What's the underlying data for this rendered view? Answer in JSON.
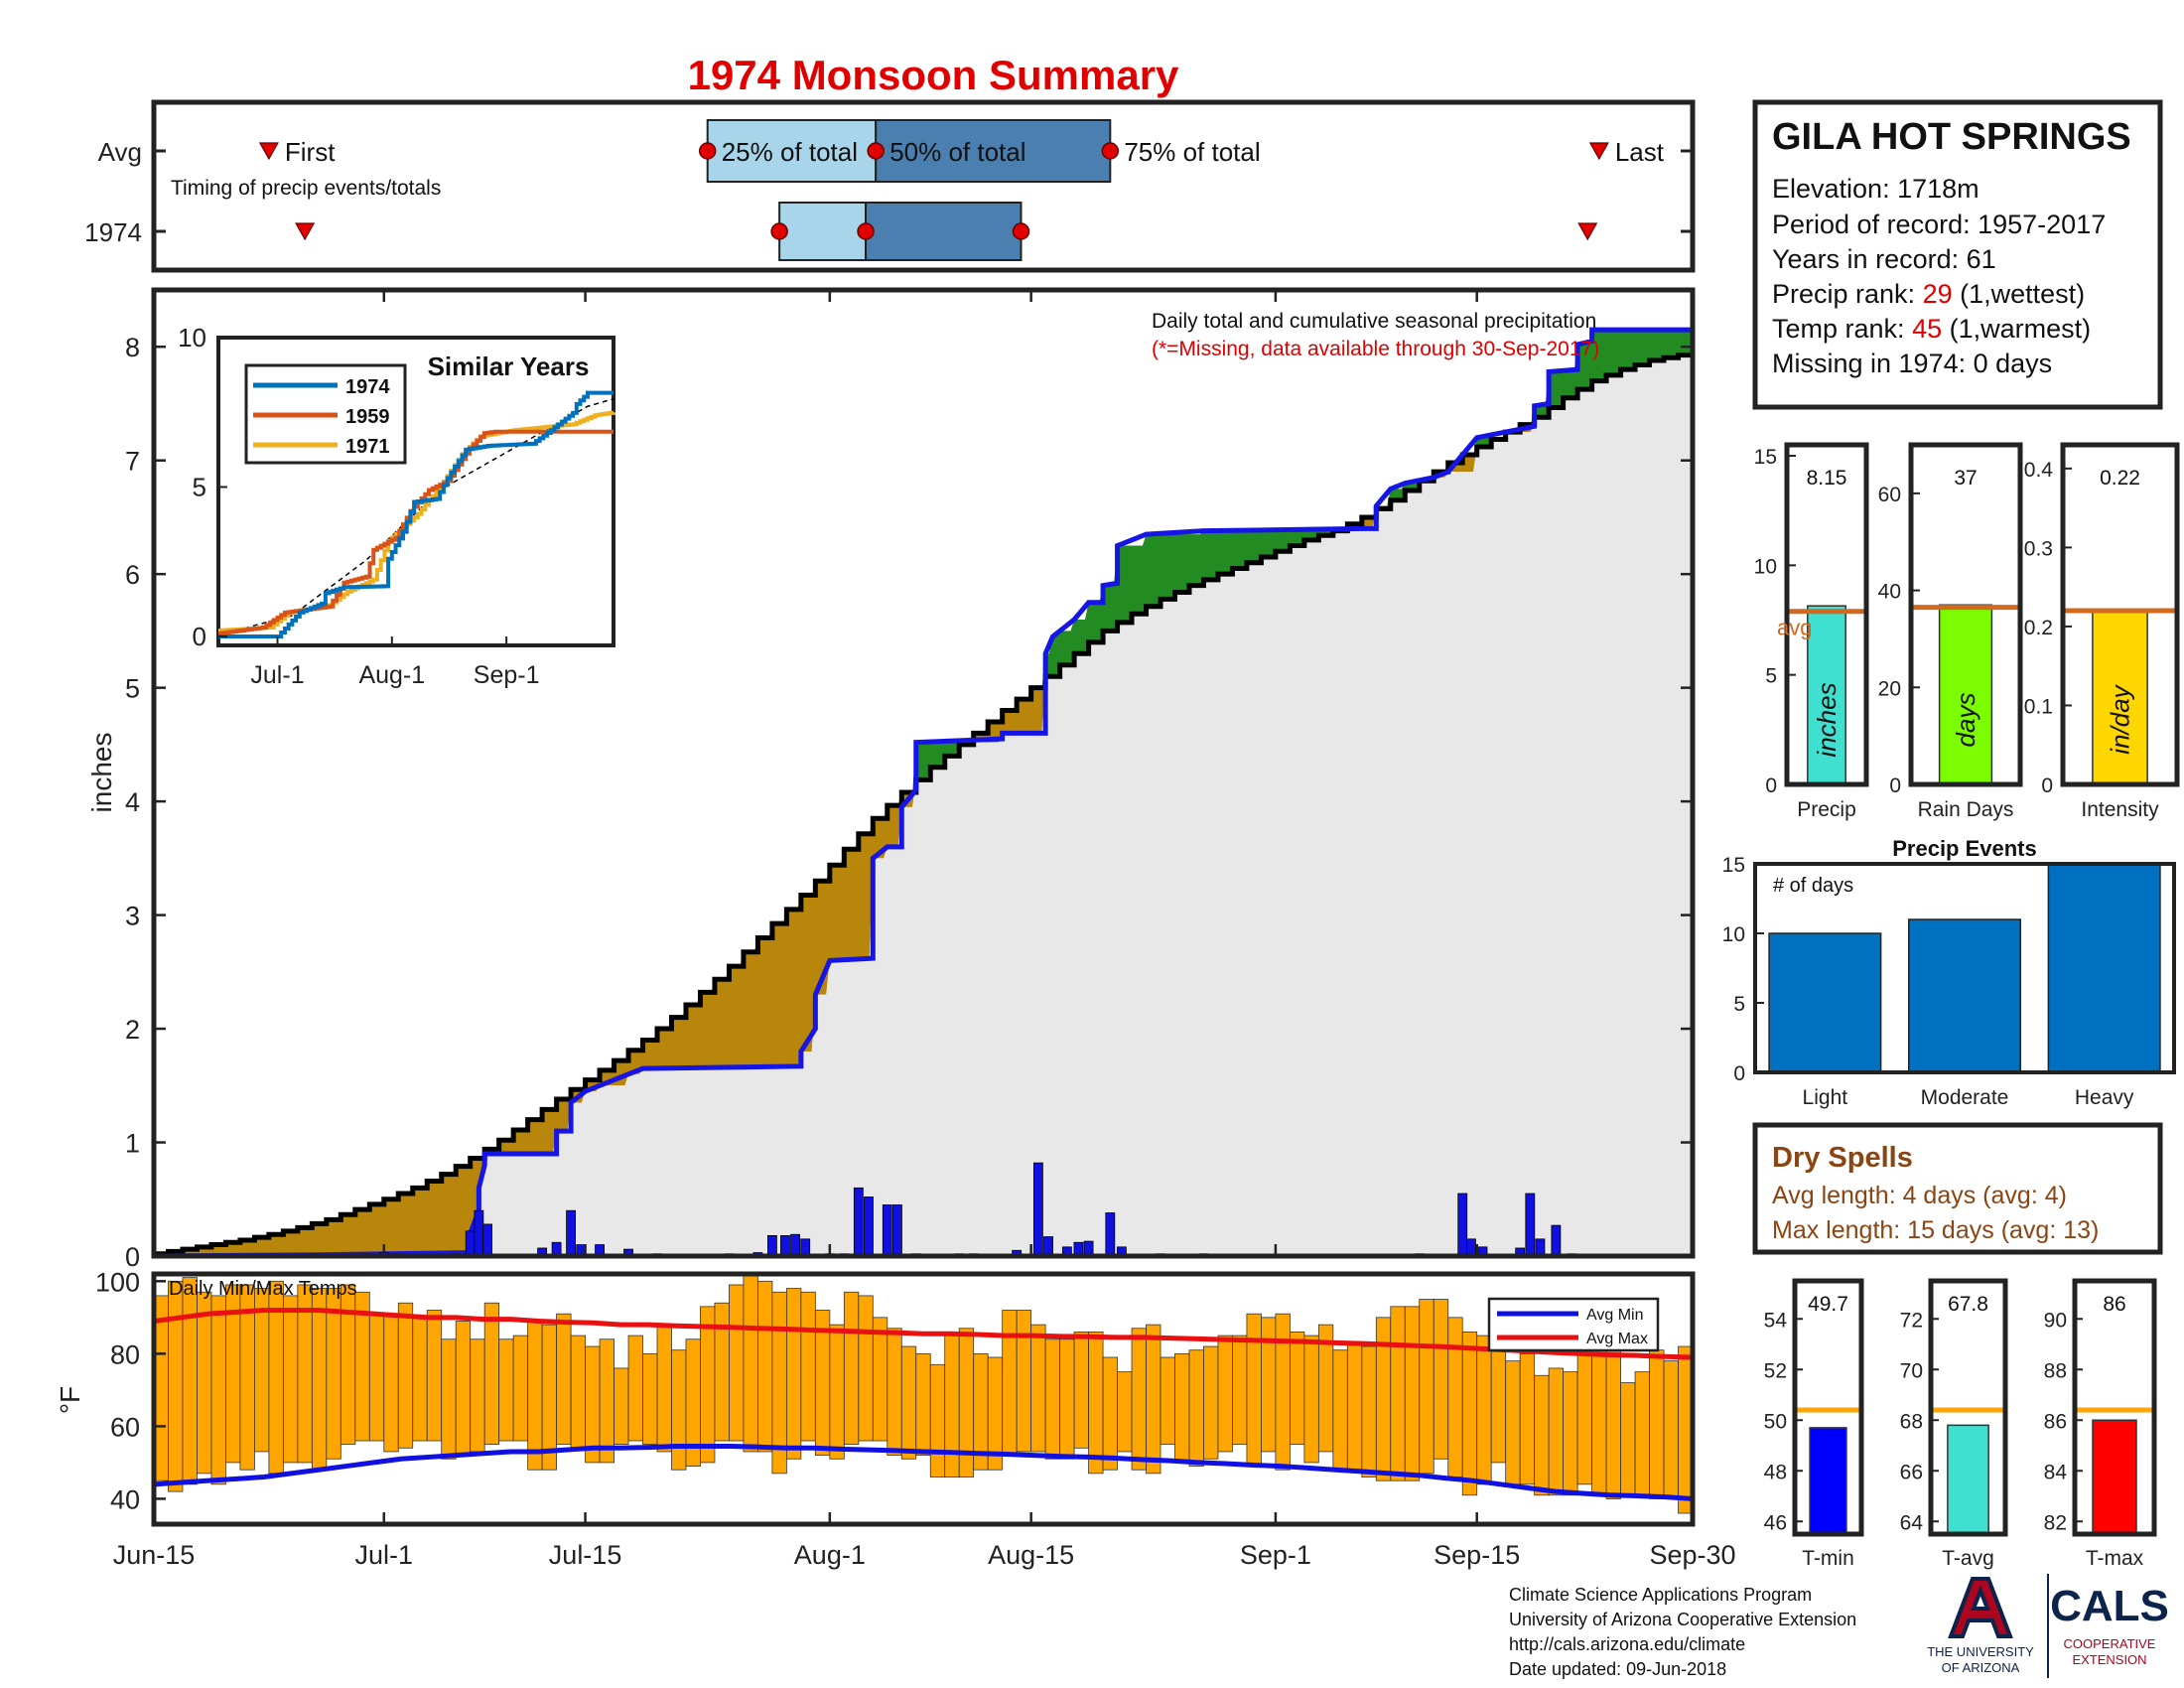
{
  "title": "1974 Monsoon Summary",
  "colors": {
    "title": "#e00000",
    "frame": "#222222",
    "box_light": "#a8d5ea",
    "box_dark": "#4a7fb0",
    "marker_red": "#e00000",
    "surplus": "#228b22",
    "deficit": "#b8860b",
    "cum_fill": "#e8e8e8",
    "year_line": "#1515e6",
    "avg_line": "#000000",
    "daily_bar": "#1010e0",
    "temp_bar": "#ffa500",
    "avg_min": "#1010e0",
    "avg_max": "#e81010",
    "rank_red": "#e00000",
    "dry_brown": "#8b4513",
    "precip_bar": "#40e0d0",
    "raindays_bar": "#7cfc00",
    "intensity_bar": "#ffd700",
    "avg_ref": "#d2691e",
    "temp_ref": "#ffa500",
    "events_bar": "#0070c0",
    "tmin_bar": "#0000ff",
    "tavg_bar": "#40e0d0",
    "tmax_bar": "#ff0000",
    "ua_blue": "#0c234b",
    "ua_red": "#ab0520",
    "s1974": "#0072bd",
    "s1959": "#d95319",
    "s1971": "#edb120"
  },
  "timing": {
    "row_labels": [
      "Avg",
      "1974"
    ],
    "note": "Timing of precip events/totals",
    "first_label": "First",
    "last_label": "Last",
    "pct_labels": [
      "25% of total",
      "50% of total",
      "75% of total"
    ],
    "avg": {
      "first": 8,
      "p25": 38.5,
      "p50": 50.2,
      "p75": 66.5,
      "last": 100.5
    },
    "year": {
      "first": 10.5,
      "p25": 43.5,
      "p50": 49.5,
      "p75": 60.3,
      "last": 99.7
    }
  },
  "station": {
    "name": "GILA HOT SPRINGS",
    "elevation": "Elevation: 1718m",
    "period": "Period of record: 1957-2017",
    "years": "Years in record: 61",
    "precip_rank_pre": "Precip rank: ",
    "precip_rank_val": "29",
    "precip_rank_post": " (1,wettest)",
    "temp_rank_pre": "Temp rank: ",
    "temp_rank_val": "45",
    "temp_rank_post": " (1,warmest)",
    "missing": "Missing in 1974: 0 days"
  },
  "chart_data": {
    "type": "area",
    "ylabel": "inches",
    "ylim": [
      0,
      8.5
    ],
    "yticks": [
      0,
      1,
      2,
      3,
      4,
      5,
      6,
      7,
      8
    ],
    "xlim": [
      0,
      107
    ],
    "x_ticks": [
      {
        "day": 0,
        "label": "Jun-15"
      },
      {
        "day": 16,
        "label": "Jul-1"
      },
      {
        "day": 30,
        "label": "Jul-15"
      },
      {
        "day": 47,
        "label": "Aug-1"
      },
      {
        "day": 61,
        "label": "Aug-15"
      },
      {
        "day": 78,
        "label": "Sep-1"
      },
      {
        "day": 92,
        "label": "Sep-15"
      },
      {
        "day": 107,
        "label": "Sep-30"
      }
    ],
    "annotation": "Daily total and cumulative seasonal precipitation",
    "missing_note": "(*=Missing, data available through 30-Sep-2017)",
    "avg_cumulative": [
      [
        0,
        0.02
      ],
      [
        2,
        0.06
      ],
      [
        4,
        0.1
      ],
      [
        6,
        0.14
      ],
      [
        8,
        0.19
      ],
      [
        10,
        0.25
      ],
      [
        12,
        0.32
      ],
      [
        14,
        0.41
      ],
      [
        16,
        0.5
      ],
      [
        18,
        0.6
      ],
      [
        20,
        0.72
      ],
      [
        22,
        0.86
      ],
      [
        24,
        1.02
      ],
      [
        26,
        1.2
      ],
      [
        28,
        1.38
      ],
      [
        30,
        1.55
      ],
      [
        32,
        1.72
      ],
      [
        34,
        1.9
      ],
      [
        36,
        2.1
      ],
      [
        38,
        2.32
      ],
      [
        40,
        2.55
      ],
      [
        42,
        2.8
      ],
      [
        44,
        3.05
      ],
      [
        46,
        3.3
      ],
      [
        48,
        3.58
      ],
      [
        50,
        3.85
      ],
      [
        52,
        4.08
      ],
      [
        54,
        4.3
      ],
      [
        56,
        4.5
      ],
      [
        58,
        4.7
      ],
      [
        60,
        4.9
      ],
      [
        62,
        5.1
      ],
      [
        64,
        5.3
      ],
      [
        66,
        5.5
      ],
      [
        68,
        5.65
      ],
      [
        70,
        5.78
      ],
      [
        72,
        5.9
      ],
      [
        74,
        6.0
      ],
      [
        76,
        6.1
      ],
      [
        78,
        6.2
      ],
      [
        80,
        6.3
      ],
      [
        82,
        6.38
      ],
      [
        84,
        6.5
      ],
      [
        86,
        6.65
      ],
      [
        88,
        6.82
      ],
      [
        90,
        6.98
      ],
      [
        92,
        7.12
      ],
      [
        94,
        7.25
      ],
      [
        96,
        7.38
      ],
      [
        98,
        7.55
      ],
      [
        100,
        7.7
      ],
      [
        102,
        7.8
      ],
      [
        104,
        7.88
      ],
      [
        107,
        7.95
      ]
    ],
    "year_cumulative": [
      [
        0,
        0.0
      ],
      [
        11,
        0.01
      ],
      [
        22,
        0.03
      ],
      [
        22,
        0.2
      ],
      [
        22.6,
        0.4
      ],
      [
        22.6,
        0.6
      ],
      [
        23,
        0.8
      ],
      [
        23,
        0.9
      ],
      [
        28,
        0.9
      ],
      [
        28,
        1.1
      ],
      [
        29,
        1.1
      ],
      [
        29,
        1.35
      ],
      [
        30,
        1.45
      ],
      [
        31,
        1.5
      ],
      [
        33,
        1.6
      ],
      [
        34,
        1.65
      ],
      [
        45,
        1.67
      ],
      [
        45,
        1.8
      ],
      [
        46,
        2.0
      ],
      [
        46,
        2.3
      ],
      [
        47,
        2.6
      ],
      [
        50,
        2.62
      ],
      [
        50,
        3.5
      ],
      [
        51,
        3.6
      ],
      [
        52,
        3.6
      ],
      [
        52,
        3.95
      ],
      [
        53,
        4.1
      ],
      [
        53,
        4.52
      ],
      [
        59,
        4.55
      ],
      [
        59,
        4.6
      ],
      [
        62,
        4.6
      ],
      [
        62,
        5.3
      ],
      [
        62.5,
        5.45
      ],
      [
        63,
        5.5
      ],
      [
        64,
        5.6
      ],
      [
        65,
        5.75
      ],
      [
        66,
        5.75
      ],
      [
        66,
        5.9
      ],
      [
        67,
        5.92
      ],
      [
        67,
        6.25
      ],
      [
        69,
        6.35
      ],
      [
        73,
        6.38
      ],
      [
        84,
        6.4
      ],
      [
        85,
        6.4
      ],
      [
        85,
        6.6
      ],
      [
        86,
        6.75
      ],
      [
        87,
        6.8
      ],
      [
        89,
        6.85
      ],
      [
        90,
        6.9
      ],
      [
        92,
        7.2
      ],
      [
        94,
        7.25
      ],
      [
        96,
        7.3
      ],
      [
        96,
        7.48
      ],
      [
        97,
        7.5
      ],
      [
        97,
        7.78
      ],
      [
        99,
        7.8
      ],
      [
        99,
        8.02
      ],
      [
        100,
        8.05
      ],
      [
        100,
        8.15
      ],
      [
        107,
        8.15
      ]
    ],
    "daily_bars": [
      [
        11.2,
        0.02
      ],
      [
        14.7,
        0.02
      ],
      [
        16,
        0.03
      ],
      [
        17,
        0.02
      ],
      [
        21,
        0.02
      ],
      [
        22,
        0.22
      ],
      [
        22.6,
        0.4
      ],
      [
        23.2,
        0.28
      ],
      [
        27,
        0.07
      ],
      [
        28,
        0.12
      ],
      [
        29,
        0.4
      ],
      [
        29.7,
        0.1
      ],
      [
        31,
        0.1
      ],
      [
        33,
        0.06
      ],
      [
        35,
        0.02
      ],
      [
        40,
        0.02
      ],
      [
        42,
        0.03
      ],
      [
        43,
        0.18
      ],
      [
        43.9,
        0.18
      ],
      [
        44.6,
        0.19
      ],
      [
        45.3,
        0.15
      ],
      [
        47,
        0.02
      ],
      [
        48,
        0.02
      ],
      [
        49,
        0.6
      ],
      [
        49.7,
        0.52
      ],
      [
        51,
        0.45
      ],
      [
        51.7,
        0.45
      ],
      [
        53,
        0.02
      ],
      [
        56,
        0.02
      ],
      [
        57,
        0.02
      ],
      [
        60,
        0.05
      ],
      [
        61.5,
        0.82
      ],
      [
        62.2,
        0.17
      ],
      [
        63.5,
        0.08
      ],
      [
        64.3,
        0.12
      ],
      [
        65,
        0.13
      ],
      [
        66.5,
        0.38
      ],
      [
        67.3,
        0.08
      ],
      [
        70,
        0.02
      ],
      [
        73,
        0.02
      ],
      [
        88,
        0.02
      ],
      [
        91,
        0.55
      ],
      [
        91.6,
        0.15
      ],
      [
        92.4,
        0.08
      ],
      [
        95,
        0.07
      ],
      [
        95.7,
        0.55
      ],
      [
        96.4,
        0.15
      ],
      [
        97.5,
        0.27
      ],
      [
        98.6,
        0.02
      ]
    ]
  },
  "inset": {
    "title": "Similar Years",
    "legend": [
      "1974",
      "1959",
      "1971"
    ],
    "yticks": [
      0,
      5,
      10
    ],
    "xticks": [
      {
        "day": 16,
        "label": "Jul-1"
      },
      {
        "day": 47,
        "label": "Aug-1"
      },
      {
        "day": 78,
        "label": "Sep-1"
      }
    ],
    "xlim": [
      0,
      107
    ],
    "ylim": [
      -0.3,
      10
    ],
    "series_1974": [
      [
        0,
        0.0
      ],
      [
        16,
        0.0
      ],
      [
        22,
        0.8
      ],
      [
        28,
        1.1
      ],
      [
        29,
        1.45
      ],
      [
        34,
        1.65
      ],
      [
        45,
        1.68
      ],
      [
        46,
        2.6
      ],
      [
        50,
        3.5
      ],
      [
        53,
        4.5
      ],
      [
        59,
        4.6
      ],
      [
        62,
        5.3
      ],
      [
        67,
        6.25
      ],
      [
        73,
        6.38
      ],
      [
        85,
        6.45
      ],
      [
        90,
        6.9
      ],
      [
        96,
        7.48
      ],
      [
        97,
        7.78
      ],
      [
        99,
        8.02
      ],
      [
        100,
        8.15
      ],
      [
        107,
        8.15
      ]
    ],
    "series_1959": [
      [
        0,
        0.1
      ],
      [
        12,
        0.3
      ],
      [
        18,
        0.8
      ],
      [
        30,
        1.0
      ],
      [
        34,
        1.8
      ],
      [
        40,
        2.0
      ],
      [
        42,
        2.9
      ],
      [
        48,
        3.3
      ],
      [
        52,
        4.2
      ],
      [
        57,
        4.9
      ],
      [
        62,
        5.2
      ],
      [
        68,
        6.3
      ],
      [
        72,
        6.8
      ],
      [
        75,
        6.85
      ],
      [
        107,
        6.85
      ]
    ],
    "series_1971": [
      [
        0,
        0.2
      ],
      [
        14,
        0.3
      ],
      [
        19,
        0.8
      ],
      [
        30,
        1.05
      ],
      [
        35,
        1.5
      ],
      [
        42,
        1.9
      ],
      [
        46,
        3.2
      ],
      [
        54,
        4.1
      ],
      [
        60,
        5.0
      ],
      [
        66,
        6.1
      ],
      [
        71,
        6.7
      ],
      [
        80,
        6.9
      ],
      [
        88,
        7.0
      ],
      [
        96,
        7.1
      ],
      [
        102,
        7.4
      ],
      [
        107,
        7.5
      ]
    ],
    "series_avg": [
      [
        0,
        0.05
      ],
      [
        20,
        0.7
      ],
      [
        40,
        2.55
      ],
      [
        60,
        4.9
      ],
      [
        80,
        6.3
      ],
      [
        100,
        7.7
      ],
      [
        107,
        7.95
      ]
    ]
  },
  "temps": {
    "label": "Daily Min/Max Temps",
    "ylabel": "°F",
    "yticks": [
      40,
      60,
      80,
      100
    ],
    "ylim": [
      33,
      102
    ],
    "legend": [
      "Avg Min",
      "Avg Max"
    ],
    "max": [
      96,
      100,
      101,
      97,
      96,
      99,
      99,
      98,
      100,
      96,
      99,
      98,
      98,
      99,
      97,
      91,
      91,
      94,
      90,
      92,
      84,
      89,
      84,
      94,
      84,
      85,
      89,
      88,
      91,
      85,
      82,
      84,
      76,
      85,
      80,
      88,
      81,
      84,
      93,
      94,
      99,
      102,
      100,
      97,
      98,
      97,
      92,
      88,
      97,
      96,
      90,
      87,
      82,
      80,
      77,
      86,
      87,
      80,
      79,
      92,
      92,
      88,
      84,
      84,
      86,
      86,
      79,
      75,
      87,
      88,
      79,
      80,
      81,
      82,
      85,
      85,
      91,
      90,
      91,
      86,
      85,
      88,
      81,
      83,
      82,
      90,
      93,
      93,
      95,
      95,
      90,
      86,
      85,
      81,
      78,
      80,
      74,
      76,
      75,
      80,
      83,
      83,
      72,
      75,
      81,
      78,
      82
    ],
    "min": [
      45,
      42,
      44,
      47,
      44,
      50,
      48,
      53,
      47,
      50,
      50,
      48,
      51,
      55,
      56,
      56,
      53,
      54,
      56,
      56,
      51,
      52,
      53,
      55,
      56,
      56,
      48,
      48,
      55,
      54,
      50,
      50,
      55,
      56,
      55,
      53,
      48,
      49,
      50,
      56,
      56,
      53,
      53,
      47,
      51,
      56,
      52,
      51,
      55,
      56,
      56,
      52,
      51,
      52,
      46,
      46,
      46,
      48,
      48,
      52,
      53,
      53,
      51,
      51,
      54,
      47,
      48,
      53,
      48,
      47,
      55,
      50,
      49,
      51,
      53,
      55,
      49,
      53,
      48,
      55,
      50,
      53,
      48,
      48,
      46,
      45,
      45,
      45,
      47,
      51,
      46,
      41,
      44,
      50,
      44,
      44,
      41,
      41,
      41,
      44,
      41,
      40,
      41,
      41,
      40,
      40,
      36
    ],
    "avg_min": [
      44,
      44.5,
      45,
      45.5,
      46,
      47,
      48,
      49,
      50,
      51,
      51.5,
      52,
      52.5,
      53,
      53,
      53.5,
      54,
      54,
      54.2,
      54.5,
      54.5,
      54.5,
      54.3,
      54,
      54,
      53.7,
      53.5,
      53.3,
      53,
      52.8,
      52.5,
      52.3,
      52,
      51.7,
      51.5,
      51.2,
      50.8,
      50.5,
      50,
      49.7,
      49.3,
      49,
      48.5,
      48,
      47.5,
      47,
      46.5,
      45.7,
      45,
      44,
      43,
      42,
      41.5,
      41,
      40.8,
      40.5,
      40
    ],
    "avg_max": [
      89,
      90,
      91,
      91.5,
      92,
      92,
      92,
      91.5,
      91,
      90.5,
      90,
      90,
      89.5,
      89.5,
      89,
      88.7,
      88.5,
      88,
      88,
      87.7,
      87.5,
      87.3,
      87,
      86.8,
      86.5,
      86.3,
      86,
      85.8,
      85.5,
      85.5,
      85.3,
      85,
      85,
      84.8,
      84.7,
      84.5,
      84.5,
      84.3,
      84.1,
      83.9,
      83.7,
      83.5,
      83.3,
      83,
      82.8,
      82.5,
      82.2,
      81.9,
      81.5,
      81.1,
      80.7,
      80.3,
      80,
      79.7,
      79.5,
      79.2,
      79
    ]
  },
  "summary_bars": [
    {
      "name": "Precip",
      "unit": "inches",
      "value": 8.15,
      "value_label": "8.15",
      "avg": 7.9,
      "ylim": [
        0,
        15.5
      ],
      "yticks": [
        0,
        5,
        10,
        15
      ],
      "avg_label": "avg"
    },
    {
      "name": "Rain Days",
      "unit": "days",
      "value": 37,
      "value_label": "37",
      "avg": 36.5,
      "ylim": [
        0,
        70
      ],
      "yticks": [
        0,
        20,
        40,
        60
      ],
      "avg_label": ""
    },
    {
      "name": "Intensity",
      "unit": "in/day",
      "value": 0.22,
      "value_label": "0.22",
      "avg": 0.22,
      "ylim": [
        0,
        0.43
      ],
      "yticks": [
        0,
        0.1,
        0.2,
        0.3,
        0.4
      ],
      "avg_label": ""
    }
  ],
  "precip_events": {
    "title": "Precip Events",
    "ylabel_note": "# of days",
    "categories": [
      "Light",
      "Moderate",
      "Heavy"
    ],
    "values": [
      10,
      11,
      15
    ],
    "ylim": [
      0,
      15
    ],
    "yticks": [
      0,
      5,
      10,
      15
    ]
  },
  "dry_spells": {
    "title": "Dry Spells",
    "avg_line": "Avg length: 4 days (avg: 4)",
    "max_line": "Max length: 15 days (avg: 13)"
  },
  "temp_bars": [
    {
      "name": "T-min",
      "value": 49.7,
      "value_label": "49.7",
      "avg": 50.4,
      "ylim": [
        45.5,
        55.5
      ],
      "yticks": [
        46,
        48,
        50,
        52,
        54
      ]
    },
    {
      "name": "T-avg",
      "value": 67.8,
      "value_label": "67.8",
      "avg": 68.4,
      "ylim": [
        63.5,
        73.5
      ],
      "yticks": [
        64,
        66,
        68,
        70,
        72
      ]
    },
    {
      "name": "T-max",
      "value": 86,
      "value_label": "86",
      "avg": 86.4,
      "ylim": [
        81.5,
        91.5
      ],
      "yticks": [
        82,
        84,
        86,
        88,
        90
      ]
    }
  ],
  "footer": {
    "line1": "Climate Science Applications Program",
    "line2": "University of Arizona Cooperative Extension",
    "line3": "http://cals.arizona.edu/climate",
    "line4": " Date updated: 09-Jun-2018"
  },
  "logos": {
    "ua_text1": "THE UNIVERSITY",
    "ua_text2": "OF ARIZONA",
    "cals": "CALS",
    "cals_sub1": "COOPERATIVE",
    "cals_sub2": "EXTENSION"
  }
}
